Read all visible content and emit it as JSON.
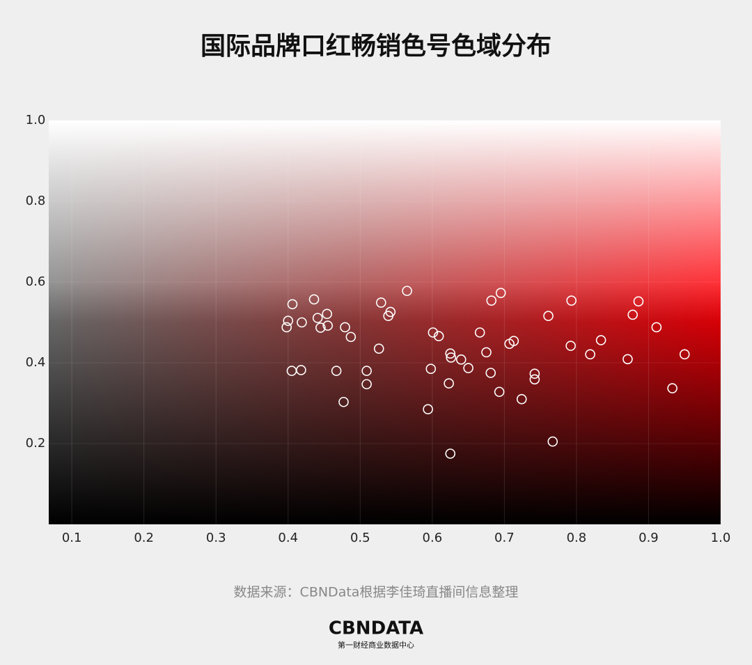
{
  "chart_data": {
    "type": "scatter",
    "title": "国际品牌口红畅销色号色域分布",
    "source": "数据来源：CBNData根据李佳琦直播间信息整理",
    "color": "#ffffff",
    "x": [
      0.398,
      0.4,
      0.406,
      0.405,
      0.418,
      0.419,
      0.436,
      0.441,
      0.445,
      0.454,
      0.455,
      0.467,
      0.477,
      0.479,
      0.487,
      0.509,
      0.509,
      0.526,
      0.529,
      0.539,
      0.542,
      0.565,
      0.594,
      0.598,
      0.601,
      0.609,
      0.623,
      0.625,
      0.626,
      0.625,
      0.64,
      0.65,
      0.666,
      0.675,
      0.681,
      0.682,
      0.693,
      0.695,
      0.707,
      0.713,
      0.724,
      0.742,
      0.742,
      0.761,
      0.767,
      0.792,
      0.793,
      0.819,
      0.834,
      0.871,
      0.878,
      0.886,
      0.911,
      0.933,
      0.95
    ],
    "y": [
      0.488,
      0.504,
      0.545,
      0.38,
      0.382,
      0.5,
      0.557,
      0.511,
      0.487,
      0.521,
      0.492,
      0.38,
      0.303,
      0.488,
      0.464,
      0.38,
      0.347,
      0.435,
      0.549,
      0.516,
      0.526,
      0.578,
      0.285,
      0.385,
      0.475,
      0.466,
      0.349,
      0.423,
      0.413,
      0.175,
      0.408,
      0.387,
      0.475,
      0.426,
      0.375,
      0.554,
      0.328,
      0.573,
      0.447,
      0.454,
      0.31,
      0.373,
      0.359,
      0.516,
      0.205,
      0.442,
      0.554,
      0.421,
      0.456,
      0.409,
      0.519,
      0.552,
      0.488,
      0.337,
      0.421
    ],
    "xlim": [
      0.068,
      1.0
    ],
    "xticks": [
      0.1,
      0.2,
      0.3,
      0.4,
      0.5,
      0.6,
      0.7,
      0.8,
      0.9,
      {
        "value": 1,
        "label": "1.0"
      }
    ],
    "ylim": [
      0,
      1.0
    ],
    "yticks": [
      0.2,
      0.4,
      0.6,
      0.8,
      {
        "value": 1,
        "label": "1.0"
      }
    ],
    "grid": true
  },
  "footer": {
    "logo": "CBNDATA",
    "tagline": "第一财经商业数据中心"
  }
}
